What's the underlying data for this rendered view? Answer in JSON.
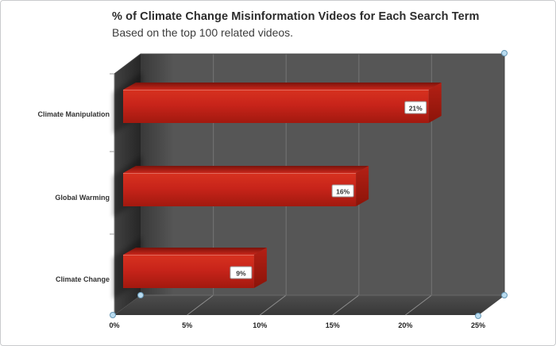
{
  "header": {
    "title": "% of Climate Change Misinformation Videos for Each Search Term",
    "subtitle": "Based on the top 100 related videos."
  },
  "chart_data": {
    "type": "bar",
    "orientation": "horizontal",
    "style": "3d-excel",
    "title": "% of Climate Change Misinformation Videos for Each Search Term",
    "subtitle": "Based on the top 100 related videos.",
    "categories": [
      "Climate Manipulation",
      "Global Warming",
      "Climate Change"
    ],
    "values": [
      21,
      16,
      9
    ],
    "data_labels": [
      "21%",
      "16%",
      "9%"
    ],
    "x_ticks": [
      "0%",
      "5%",
      "10%",
      "15%",
      "20%",
      "25%"
    ],
    "x_tick_values": [
      0,
      5,
      10,
      15,
      20,
      25
    ],
    "xlim": [
      0,
      25
    ],
    "xlabel": "",
    "ylabel": "",
    "legend": "none",
    "grid": "vertical-gridlines-on-wall-and-floor",
    "bar_color": "#c8241a",
    "back_wall_color": "#565656",
    "floor_color": "#3e3e3e",
    "side_wall_color": "#303030",
    "gridline_wall_color": "#6f6f6f",
    "gridline_floor_color": "#9a9a9a",
    "data_label_box": {
      "fill": "#ffffff",
      "border": "#9b9b9b",
      "text_color": "#333333"
    }
  },
  "selection": {
    "state": "plot-area-selected",
    "handle_fill": "#badcf0",
    "handle_border": "#6898b5"
  }
}
